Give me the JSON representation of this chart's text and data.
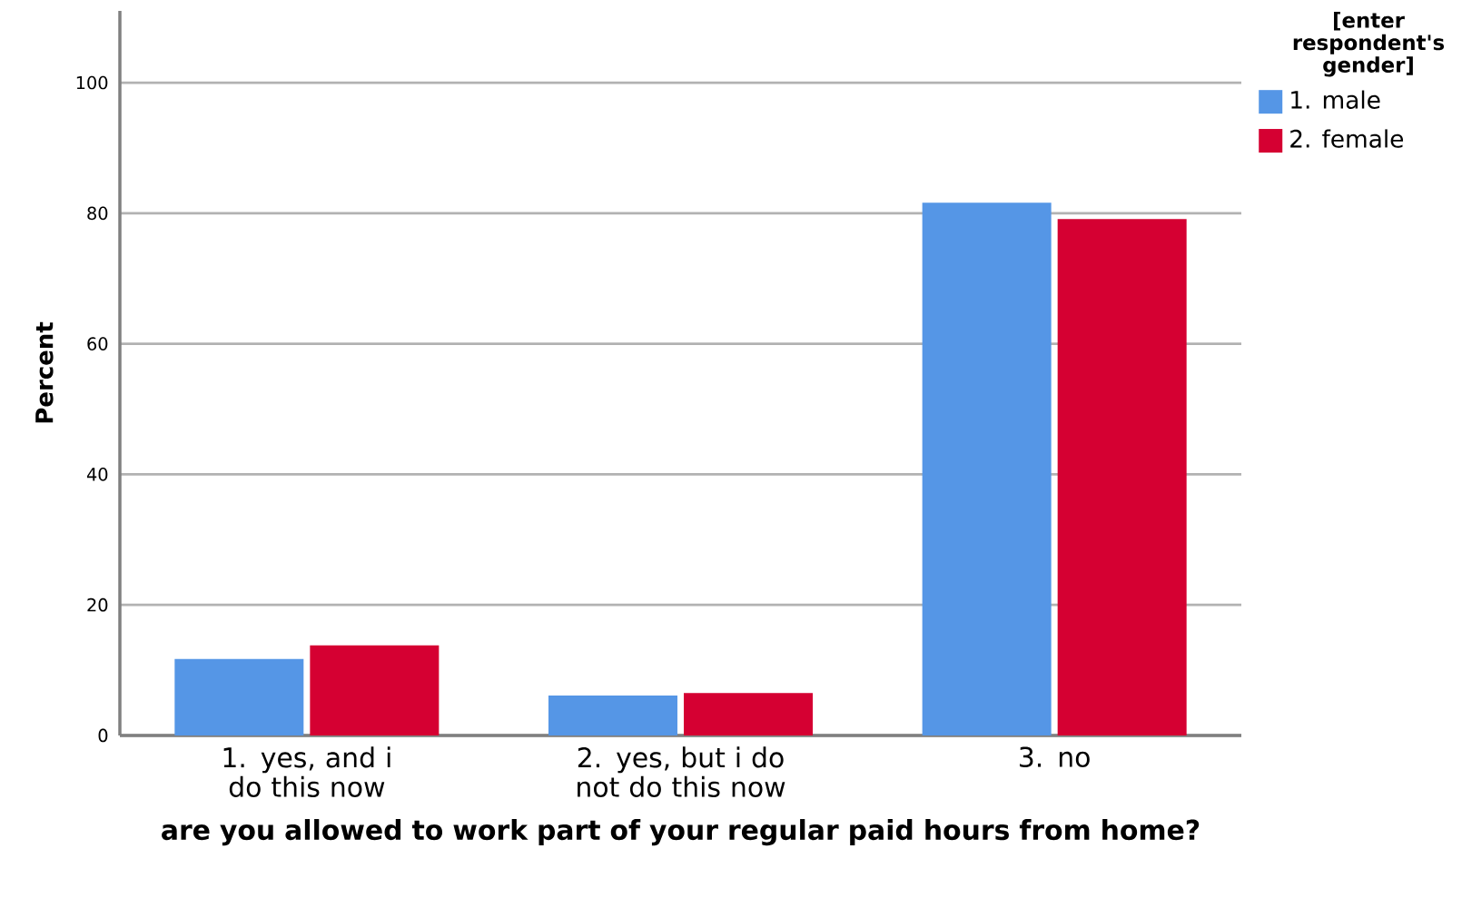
{
  "chart_data": {
    "type": "bar",
    "xlabel": "are you allowed to work part of your regular paid hours from home?",
    "ylabel": "Percent",
    "categories": [
      "1. yes, and i do this now",
      "2. yes, but i do not do this now",
      "3. no"
    ],
    "series": [
      {
        "name": "1.  male",
        "color": "#5596e6",
        "values": [
          11.7,
          6.1,
          81.6
        ]
      },
      {
        "name": "2.  female",
        "color": "#d50032",
        "values": [
          13.8,
          6.5,
          79.1
        ]
      }
    ],
    "legend_title": "[enter respondent's gender]",
    "legend": "top right",
    "grid": "y",
    "ylim": [
      0,
      111
    ],
    "yticks": [
      0,
      20,
      40,
      60,
      80,
      100
    ]
  }
}
